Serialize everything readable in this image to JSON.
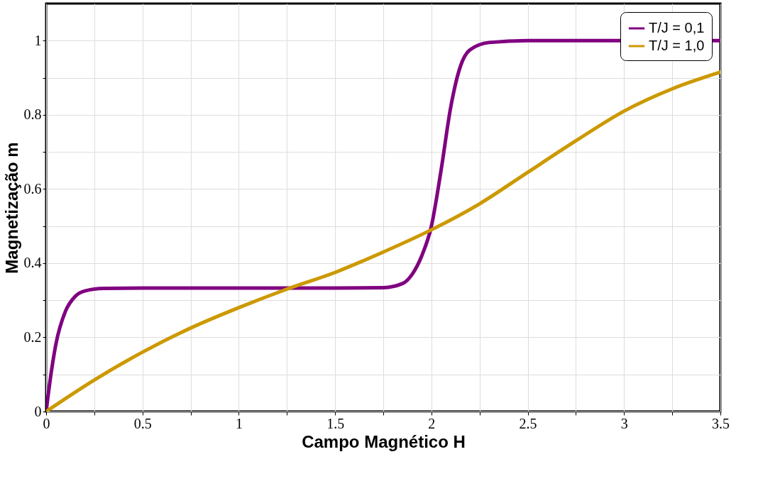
{
  "chart_data": {
    "type": "line",
    "xlabel": "Campo Magnético H",
    "ylabel": "Magnetização m",
    "xlim": [
      0,
      3.5
    ],
    "ylim": [
      0,
      1.1
    ],
    "xticks": [
      0,
      {
        "value": 0.25,
        "label": null
      },
      0.5,
      {
        "value": 0.75,
        "label": null
      },
      1,
      {
        "value": 1.25,
        "label": null
      },
      1.5,
      {
        "value": 1.75,
        "label": null
      },
      2,
      {
        "value": 2.25,
        "label": null
      },
      2.5,
      {
        "value": 2.75,
        "label": null
      },
      3,
      {
        "value": 3.25,
        "label": null
      },
      3.5
    ],
    "yticks": [
      0,
      {
        "value": 0.1,
        "label": null
      },
      0.2,
      {
        "value": 0.3,
        "label": null
      },
      0.4,
      {
        "value": 0.5,
        "label": null
      },
      0.6,
      {
        "value": 0.7,
        "label": null
      },
      0.8,
      {
        "value": 0.9,
        "label": null
      },
      1
    ],
    "grid": true,
    "legend": "top right",
    "marker": "none",
    "line_style": "solid",
    "series": [
      {
        "name": "T/J = 0,1",
        "color": "#800080",
        "x": [
          0,
          0.025,
          0.05,
          0.1,
          0.15,
          0.2,
          0.3,
          0.5,
          1.0,
          1.5,
          1.75,
          1.85,
          1.9,
          1.95,
          2.0,
          2.05,
          2.1,
          2.15,
          2.2,
          2.3,
          2.5,
          3.5
        ],
        "values": [
          0,
          0.1,
          0.18,
          0.27,
          0.31,
          0.325,
          0.332,
          0.333,
          0.333,
          0.333,
          0.334,
          0.345,
          0.37,
          0.42,
          0.5,
          0.65,
          0.82,
          0.93,
          0.975,
          0.995,
          1.0,
          1.0
        ]
      },
      {
        "name": "T/J = 1,0",
        "color": "#cc9900",
        "x": [
          0,
          0.25,
          0.5,
          0.75,
          1.0,
          1.25,
          1.5,
          1.75,
          2.0,
          2.25,
          2.5,
          2.75,
          3.0,
          3.25,
          3.5
        ],
        "values": [
          0,
          0.085,
          0.16,
          0.225,
          0.28,
          0.33,
          0.375,
          0.43,
          0.49,
          0.56,
          0.645,
          0.73,
          0.81,
          0.87,
          0.915
        ]
      }
    ]
  }
}
